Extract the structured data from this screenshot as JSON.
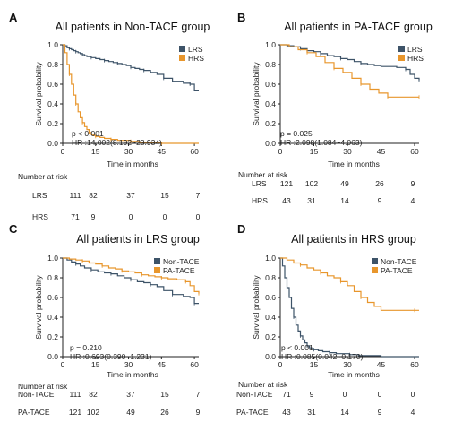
{
  "colors": {
    "non_tace": "#3d5368",
    "pa_tace": "#e8962c",
    "lrs": "#3d5368",
    "hrs": "#e8962c",
    "axis": "#222222"
  },
  "risk_title": "Number at risk",
  "chart_data": [
    {
      "letter": "A",
      "type": "line",
      "title": "All patients in Non-TACE group",
      "xlabel": "Time in months",
      "ylabel": "Survival probability",
      "xlim": [
        0,
        62
      ],
      "ylim": [
        0,
        1
      ],
      "xticks": [
        0,
        15,
        30,
        45,
        60
      ],
      "yticks": [
        "0.0",
        "0.2",
        "0.4",
        "0.6",
        "0.8",
        "1.0"
      ],
      "legend_position": "top-right",
      "stat_p": "p < 0.001",
      "stat_hr": "HR :14.002(8.192~23.934)",
      "series": [
        {
          "name": "LRS",
          "color_key": "lrs",
          "x": [
            0,
            1,
            2,
            3,
            4,
            5,
            6,
            7,
            8,
            9,
            10,
            11,
            13,
            15,
            17,
            19,
            21,
            23,
            25,
            27,
            29,
            31,
            33,
            35,
            37,
            40,
            43,
            46,
            50,
            55,
            58,
            60,
            62
          ],
          "y": [
            1,
            0.99,
            0.97,
            0.96,
            0.95,
            0.94,
            0.93,
            0.92,
            0.91,
            0.9,
            0.89,
            0.88,
            0.87,
            0.86,
            0.85,
            0.84,
            0.83,
            0.82,
            0.81,
            0.8,
            0.79,
            0.77,
            0.76,
            0.75,
            0.74,
            0.72,
            0.7,
            0.66,
            0.63,
            0.61,
            0.6,
            0.54,
            0.54
          ]
        },
        {
          "name": "HRS",
          "color_key": "hrs",
          "x": [
            0,
            1,
            2,
            3,
            4,
            5,
            6,
            7,
            8,
            9,
            10,
            11,
            12,
            13,
            14,
            15,
            17,
            19,
            22,
            25,
            28,
            31,
            35,
            40,
            45,
            60,
            62
          ],
          "y": [
            1,
            0.92,
            0.8,
            0.7,
            0.6,
            0.49,
            0.4,
            0.32,
            0.26,
            0.21,
            0.17,
            0.14,
            0.11,
            0.09,
            0.08,
            0.07,
            0.06,
            0.05,
            0.04,
            0.03,
            0.03,
            0.02,
            0.01,
            0.01,
            0,
            0,
            0
          ]
        }
      ],
      "risk_table": [
        {
          "label": "LRS",
          "values": [
            "111",
            "82",
            "37",
            "15",
            "7"
          ]
        },
        {
          "label": "HRS",
          "values": [
            "71",
            "9",
            "0",
            "0",
            "0"
          ]
        }
      ]
    },
    {
      "letter": "B",
      "type": "line",
      "title": "All patients in PA-TACE group",
      "xlabel": "Time in months",
      "ylabel": "Survival probability",
      "xlim": [
        0,
        62
      ],
      "ylim": [
        0,
        1
      ],
      "xticks": [
        0,
        15,
        30,
        45,
        60
      ],
      "yticks": [
        "0.0",
        "0.2",
        "0.4",
        "0.6",
        "0.8",
        "1.0"
      ],
      "legend_position": "top-right",
      "stat_p": "p = 0.025",
      "stat_hr": "HR :2.098(1.084~4.063)",
      "series": [
        {
          "name": "LRS",
          "color_key": "lrs",
          "x": [
            0,
            3,
            6,
            9,
            12,
            15,
            18,
            21,
            24,
            27,
            30,
            33,
            36,
            39,
            42,
            45,
            48,
            52,
            56,
            58,
            60,
            62
          ],
          "y": [
            1,
            0.99,
            0.98,
            0.96,
            0.94,
            0.93,
            0.91,
            0.89,
            0.88,
            0.86,
            0.85,
            0.83,
            0.81,
            0.8,
            0.79,
            0.78,
            0.78,
            0.77,
            0.75,
            0.7,
            0.66,
            0.64
          ]
        },
        {
          "name": "HRS",
          "color_key": "hrs",
          "x": [
            0,
            4,
            8,
            12,
            16,
            20,
            24,
            28,
            32,
            36,
            40,
            44,
            48,
            55,
            60,
            62
          ],
          "y": [
            1,
            0.98,
            0.95,
            0.92,
            0.88,
            0.82,
            0.76,
            0.72,
            0.66,
            0.6,
            0.55,
            0.51,
            0.47,
            0.47,
            0.47,
            0.47
          ]
        }
      ],
      "risk_table": [
        {
          "label": "LRS",
          "values": [
            "121",
            "102",
            "49",
            "26",
            "9"
          ]
        },
        {
          "label": "HRS",
          "values": [
            "43",
            "31",
            "14",
            "9",
            "4"
          ]
        }
      ]
    },
    {
      "letter": "C",
      "type": "line",
      "title": "All patients in LRS group",
      "xlabel": "Time in months",
      "ylabel": "Survival probability",
      "xlim": [
        0,
        62
      ],
      "ylim": [
        0,
        1
      ],
      "xticks": [
        0,
        15,
        30,
        45,
        60
      ],
      "yticks": [
        "0.0",
        "0.2",
        "0.4",
        "0.6",
        "0.8",
        "1.0"
      ],
      "legend_position": "top-right",
      "stat_p": "p = 0.210",
      "stat_hr": "HR :0.693(0.390~1.231)",
      "series": [
        {
          "name": "Non-TACE",
          "color_key": "non_tace",
          "x": [
            0,
            2,
            4,
            6,
            8,
            10,
            13,
            16,
            19,
            22,
            25,
            28,
            31,
            34,
            37,
            40,
            43,
            46,
            50,
            55,
            58,
            60,
            62
          ],
          "y": [
            1,
            0.98,
            0.96,
            0.94,
            0.92,
            0.9,
            0.88,
            0.86,
            0.85,
            0.84,
            0.82,
            0.8,
            0.78,
            0.76,
            0.75,
            0.73,
            0.71,
            0.67,
            0.63,
            0.61,
            0.6,
            0.54,
            0.54
          ]
        },
        {
          "name": "PA-TACE",
          "color_key": "pa_tace",
          "x": [
            0,
            3,
            6,
            9,
            12,
            15,
            18,
            21,
            24,
            27,
            30,
            33,
            36,
            39,
            42,
            45,
            48,
            52,
            56,
            58,
            60,
            62
          ],
          "y": [
            1,
            0.99,
            0.98,
            0.97,
            0.95,
            0.94,
            0.92,
            0.9,
            0.89,
            0.87,
            0.86,
            0.85,
            0.83,
            0.82,
            0.81,
            0.8,
            0.79,
            0.78,
            0.76,
            0.72,
            0.66,
            0.64
          ]
        }
      ],
      "risk_table": [
        {
          "label": "Non-TACE",
          "values": [
            "111",
            "82",
            "37",
            "15",
            "7"
          ]
        },
        {
          "label": "PA-TACE",
          "values": [
            "121",
            "102",
            "49",
            "26",
            "9"
          ]
        }
      ]
    },
    {
      "letter": "D",
      "type": "line",
      "title": "All patients in HRS group",
      "xlabel": "Time in months",
      "ylabel": "Survival probability",
      "xlim": [
        0,
        62
      ],
      "ylim": [
        0,
        1
      ],
      "xticks": [
        0,
        15,
        30,
        45,
        60
      ],
      "yticks": [
        "0.0",
        "0.2",
        "0.4",
        "0.6",
        "0.8",
        "1.0"
      ],
      "legend_position": "top-right",
      "stat_p": "p < 0.001",
      "stat_hr": "HR :0.085(0.042~0.170)",
      "series": [
        {
          "name": "Non-TACE",
          "color_key": "non_tace",
          "x": [
            0,
            1,
            2,
            3,
            4,
            5,
            6,
            7,
            8,
            9,
            10,
            11,
            12,
            13,
            14,
            15,
            17,
            19,
            22,
            25,
            28,
            31,
            35,
            40,
            45,
            60,
            62
          ],
          "y": [
            1,
            0.92,
            0.8,
            0.7,
            0.6,
            0.49,
            0.4,
            0.32,
            0.26,
            0.21,
            0.17,
            0.14,
            0.11,
            0.09,
            0.08,
            0.07,
            0.06,
            0.05,
            0.04,
            0.03,
            0.03,
            0.02,
            0.01,
            0.01,
            0,
            0,
            0
          ]
        },
        {
          "name": "PA-TACE",
          "color_key": "pa_tace",
          "x": [
            0,
            3,
            6,
            9,
            12,
            15,
            18,
            21,
            24,
            27,
            30,
            33,
            36,
            39,
            42,
            45,
            48,
            55,
            60,
            62
          ],
          "y": [
            1,
            0.98,
            0.95,
            0.93,
            0.9,
            0.88,
            0.85,
            0.82,
            0.8,
            0.76,
            0.72,
            0.66,
            0.6,
            0.55,
            0.51,
            0.47,
            0.47,
            0.47,
            0.47,
            0.47
          ]
        }
      ],
      "risk_table": [
        {
          "label": "Non-TACE",
          "values": [
            "71",
            "9",
            "0",
            "0",
            "0"
          ]
        },
        {
          "label": "PA-TACE",
          "values": [
            "43",
            "31",
            "14",
            "9",
            "4"
          ]
        }
      ]
    }
  ]
}
